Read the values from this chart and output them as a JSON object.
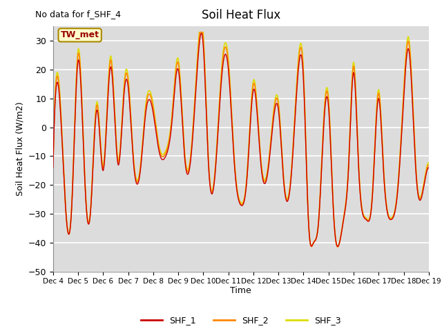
{
  "title": "Soil Heat Flux",
  "subtitle": "No data for f_SHF_4",
  "ylabel": "Soil Heat Flux (W/m2)",
  "xlabel": "Time",
  "ylim": [
    -50,
    35
  ],
  "yticks": [
    -50,
    -40,
    -30,
    -20,
    -10,
    0,
    10,
    20,
    30
  ],
  "colors": {
    "SHF_1": "#cc0000",
    "SHF_2": "#ff8800",
    "SHF_3": "#dddd00"
  },
  "bg_color": "#dcdcdc",
  "legend_label": "TW_met",
  "x_tick_labels": [
    "Dec 4",
    "Dec 5",
    "Dec 6",
    "Dec 7",
    "Dec 8",
    "Dec 9",
    "Dec 10",
    "Dec 11",
    "Dec 12",
    "Dec 13",
    "Dec 14",
    "Dec 15",
    "Dec 16",
    "Dec 17",
    "Dec 18",
    "Dec 19"
  ]
}
